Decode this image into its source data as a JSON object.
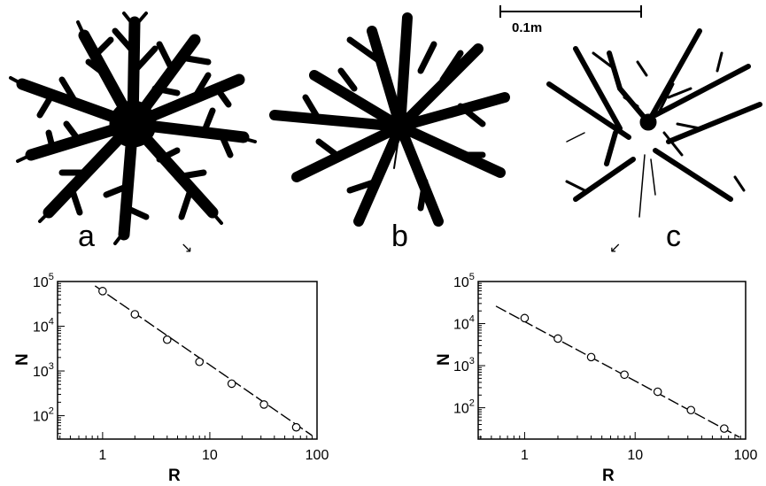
{
  "panels": {
    "labels": [
      "a",
      "b",
      "c"
    ],
    "scale_bar": "0.1m"
  },
  "chart_data": [
    {
      "type": "scatter",
      "title": "",
      "xlabel": "R",
      "ylabel": "N",
      "x_scale": "log",
      "y_scale": "log",
      "xlim": [
        0.38,
        100
      ],
      "ylim": [
        30,
        100000
      ],
      "x_ticks": [
        1,
        10,
        100
      ],
      "x_tick_labels": [
        "1",
        "10",
        "100"
      ],
      "y_ticks": [
        100,
        1000,
        10000,
        100000
      ],
      "y_tick_labels": [
        {
          "base": "10",
          "exp": "2"
        },
        {
          "base": "10",
          "exp": "3"
        },
        {
          "base": "10",
          "exp": "4"
        },
        {
          "base": "10",
          "exp": "5"
        }
      ],
      "grid": false,
      "series": [
        {
          "x": [
            1,
            2,
            4,
            8,
            16,
            32,
            64
          ],
          "y": [
            61000,
            18500,
            5000,
            1600,
            520,
            178,
            55
          ]
        }
      ],
      "fit_line": {
        "x": [
          0.85,
          90
        ],
        "y": [
          80000,
          36
        ],
        "style": "dashed"
      }
    },
    {
      "type": "scatter",
      "title": "",
      "xlabel": "R",
      "ylabel": "N",
      "x_scale": "log",
      "y_scale": "log",
      "xlim": [
        0.38,
        100
      ],
      "ylim": [
        18,
        100000
      ],
      "x_ticks": [
        1,
        10,
        100
      ],
      "x_tick_labels": [
        "1",
        "10",
        "100"
      ],
      "y_ticks": [
        100,
        1000,
        10000,
        100000
      ],
      "y_tick_labels": [
        {
          "base": "10",
          "exp": "2"
        },
        {
          "base": "10",
          "exp": "3"
        },
        {
          "base": "10",
          "exp": "4"
        },
        {
          "base": "10",
          "exp": "5"
        }
      ],
      "grid": false,
      "series": [
        {
          "x": [
            1,
            2,
            4,
            8,
            16,
            32,
            64
          ],
          "y": [
            13500,
            4400,
            1600,
            610,
            240,
            88,
            32
          ]
        }
      ],
      "fit_line": {
        "x": [
          0.55,
          88
        ],
        "y": [
          26000,
          20
        ],
        "style": "dashed"
      }
    }
  ]
}
